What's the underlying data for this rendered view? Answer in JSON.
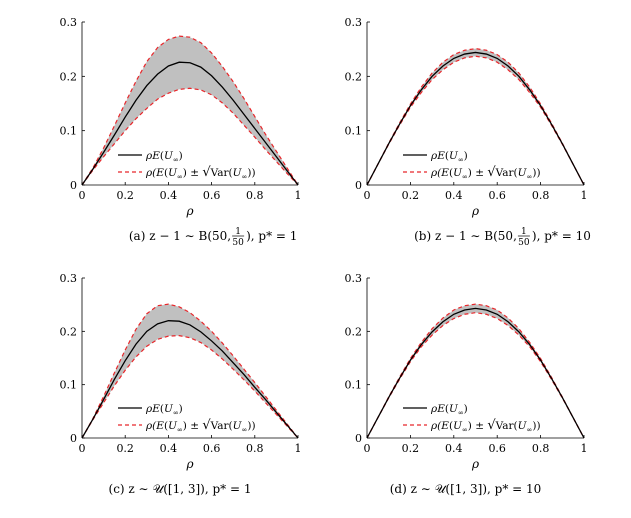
{
  "chart_data": [
    {
      "type": "line",
      "xlabel": "ρ",
      "ylabel": "",
      "xlim": [
        0,
        1
      ],
      "ylim": [
        0,
        0.3
      ],
      "xticks": [
        "0",
        "0.2",
        "0.4",
        "0.6",
        "0.8",
        "1"
      ],
      "yticks": [
        "0",
        "0.1",
        "0.2",
        "0.3"
      ],
      "x": [
        0,
        0.05,
        0.1,
        0.15,
        0.2,
        0.25,
        0.3,
        0.35,
        0.4,
        0.45,
        0.5,
        0.55,
        0.6,
        0.65,
        0.7,
        0.75,
        0.8,
        0.85,
        0.9,
        0.95,
        1
      ],
      "series": [
        {
          "name": "ρE(U∞)",
          "style": "solid",
          "color": "#000000",
          "values": [
            0,
            0.029,
            0.06,
            0.092,
            0.125,
            0.156,
            0.183,
            0.204,
            0.219,
            0.226,
            0.225,
            0.217,
            0.201,
            0.18,
            0.156,
            0.13,
            0.104,
            0.078,
            0.052,
            0.026,
            0
          ]
        },
        {
          "name": "ρ(E(U∞) ± √Var(U∞))",
          "style": "dashed",
          "color": "#e8262a",
          "upper": [
            0,
            0.031,
            0.068,
            0.109,
            0.151,
            0.191,
            0.227,
            0.253,
            0.268,
            0.274,
            0.272,
            0.262,
            0.243,
            0.218,
            0.19,
            0.159,
            0.126,
            0.093,
            0.062,
            0.031,
            0
          ],
          "lower": [
            0,
            0.027,
            0.052,
            0.076,
            0.1,
            0.122,
            0.141,
            0.158,
            0.169,
            0.176,
            0.178,
            0.175,
            0.166,
            0.151,
            0.132,
            0.11,
            0.088,
            0.065,
            0.043,
            0.021,
            0
          ]
        }
      ],
      "legend": "bottom-center",
      "caption": {
        "prefix": "(a)  z − 1 ∼ B(50,",
        "frac_num": "1",
        "frac_den": "50",
        "suffix": "), p* = 1"
      }
    },
    {
      "type": "line",
      "xlabel": "ρ",
      "ylabel": "",
      "xlim": [
        0,
        1
      ],
      "ylim": [
        0,
        0.3
      ],
      "xticks": [
        "0",
        "0.2",
        "0.4",
        "0.6",
        "0.8",
        "1"
      ],
      "yticks": [
        "0",
        "0.1",
        "0.2",
        "0.3"
      ],
      "x": [
        0,
        0.05,
        0.1,
        0.15,
        0.2,
        0.25,
        0.3,
        0.35,
        0.4,
        0.45,
        0.5,
        0.55,
        0.6,
        0.65,
        0.7,
        0.75,
        0.8,
        0.85,
        0.9,
        0.95,
        1
      ],
      "series": [
        {
          "name": "ρE(U∞)",
          "style": "solid",
          "color": "#000000",
          "values": [
            0,
            0.038,
            0.076,
            0.112,
            0.146,
            0.175,
            0.2,
            0.219,
            0.233,
            0.241,
            0.244,
            0.241,
            0.233,
            0.219,
            0.2,
            0.175,
            0.146,
            0.112,
            0.076,
            0.038,
            0
          ]
        },
        {
          "name": "ρ(E(U∞) ± √Var(U∞))",
          "style": "dashed",
          "color": "#e8262a",
          "upper": [
            0,
            0.038,
            0.077,
            0.114,
            0.149,
            0.18,
            0.206,
            0.226,
            0.24,
            0.248,
            0.251,
            0.248,
            0.24,
            0.226,
            0.206,
            0.18,
            0.149,
            0.114,
            0.077,
            0.038,
            0
          ],
          "lower": [
            0,
            0.038,
            0.075,
            0.11,
            0.143,
            0.17,
            0.194,
            0.212,
            0.226,
            0.234,
            0.237,
            0.234,
            0.226,
            0.212,
            0.194,
            0.17,
            0.143,
            0.11,
            0.075,
            0.038,
            0
          ]
        }
      ],
      "legend": "bottom-center",
      "caption": {
        "prefix": "(b)  z − 1 ∼ B(50,",
        "frac_num": "1",
        "frac_den": "50",
        "suffix": "), p* = 10"
      }
    },
    {
      "type": "line",
      "xlabel": "ρ",
      "ylabel": "",
      "xlim": [
        0,
        1
      ],
      "ylim": [
        0,
        0.3
      ],
      "xticks": [
        "0",
        "0.2",
        "0.4",
        "0.6",
        "0.8",
        "1"
      ],
      "yticks": [
        "0",
        "0.1",
        "0.2",
        "0.3"
      ],
      "x": [
        0,
        0.05,
        0.1,
        0.15,
        0.2,
        0.25,
        0.3,
        0.35,
        0.4,
        0.45,
        0.5,
        0.55,
        0.6,
        0.65,
        0.7,
        0.75,
        0.8,
        0.85,
        0.9,
        0.95,
        1
      ],
      "series": [
        {
          "name": "ρE(U∞)",
          "style": "solid",
          "color": "#000000",
          "values": [
            0,
            0.035,
            0.072,
            0.11,
            0.145,
            0.176,
            0.2,
            0.214,
            0.22,
            0.219,
            0.212,
            0.199,
            0.182,
            0.163,
            0.141,
            0.119,
            0.095,
            0.072,
            0.048,
            0.024,
            0
          ]
        },
        {
          "name": "ρ(E(U∞) ± √Var(U∞))",
          "style": "dashed",
          "color": "#e8262a",
          "upper": [
            0,
            0.036,
            0.078,
            0.122,
            0.165,
            0.204,
            0.233,
            0.248,
            0.251,
            0.246,
            0.235,
            0.219,
            0.2,
            0.178,
            0.154,
            0.129,
            0.104,
            0.078,
            0.052,
            0.026,
            0
          ],
          "lower": [
            0,
            0.034,
            0.066,
            0.098,
            0.127,
            0.152,
            0.172,
            0.185,
            0.191,
            0.192,
            0.188,
            0.179,
            0.165,
            0.148,
            0.129,
            0.109,
            0.088,
            0.066,
            0.044,
            0.022,
            0
          ]
        }
      ],
      "legend": "bottom-center",
      "caption": {
        "prefix": "(c)  z ∼ 𝒰([1, 3]), p* = 1",
        "frac_num": "",
        "frac_den": "",
        "suffix": ""
      }
    },
    {
      "type": "line",
      "xlabel": "ρ",
      "ylabel": "",
      "xlim": [
        0,
        1
      ],
      "ylim": [
        0,
        0.3
      ],
      "xticks": [
        "0",
        "0.2",
        "0.4",
        "0.6",
        "0.8",
        "1"
      ],
      "yticks": [
        "0",
        "0.1",
        "0.2",
        "0.3"
      ],
      "x": [
        0,
        0.05,
        0.1,
        0.15,
        0.2,
        0.25,
        0.3,
        0.35,
        0.4,
        0.45,
        0.5,
        0.55,
        0.6,
        0.65,
        0.7,
        0.75,
        0.8,
        0.85,
        0.9,
        0.95,
        1
      ],
      "series": [
        {
          "name": "ρE(U∞)",
          "style": "solid",
          "color": "#000000",
          "values": [
            0,
            0.038,
            0.076,
            0.112,
            0.146,
            0.175,
            0.199,
            0.218,
            0.232,
            0.24,
            0.243,
            0.24,
            0.232,
            0.218,
            0.199,
            0.175,
            0.146,
            0.112,
            0.076,
            0.038,
            0
          ]
        },
        {
          "name": "ρ(E(U∞) ± √Var(U∞))",
          "style": "dashed",
          "color": "#e8262a",
          "upper": [
            0,
            0.038,
            0.077,
            0.114,
            0.149,
            0.179,
            0.205,
            0.225,
            0.24,
            0.248,
            0.251,
            0.248,
            0.24,
            0.225,
            0.205,
            0.179,
            0.149,
            0.114,
            0.077,
            0.038,
            0
          ],
          "lower": [
            0,
            0.038,
            0.075,
            0.11,
            0.143,
            0.171,
            0.193,
            0.211,
            0.224,
            0.232,
            0.235,
            0.232,
            0.224,
            0.211,
            0.193,
            0.171,
            0.143,
            0.11,
            0.075,
            0.038,
            0
          ]
        }
      ],
      "legend": "bottom-center",
      "caption": {
        "prefix": "(d)  z ∼ 𝒰([1, 3]), p* = 10",
        "frac_num": "",
        "frac_den": "",
        "suffix": ""
      }
    }
  ],
  "colors": {
    "band_fill": "#c0c0c0",
    "mean_line": "#000000",
    "dashed_line": "#e8262a"
  },
  "legend_labels": {
    "mean": {
      "rho": "ρ",
      "e": "E",
      "u": "U",
      "sub": "∞"
    },
    "band": {
      "open": "ρ(",
      "e": "E",
      "u": "U",
      "sub": "∞",
      "pm": ") ±",
      "var": "Var",
      "close": "))"
    }
  }
}
